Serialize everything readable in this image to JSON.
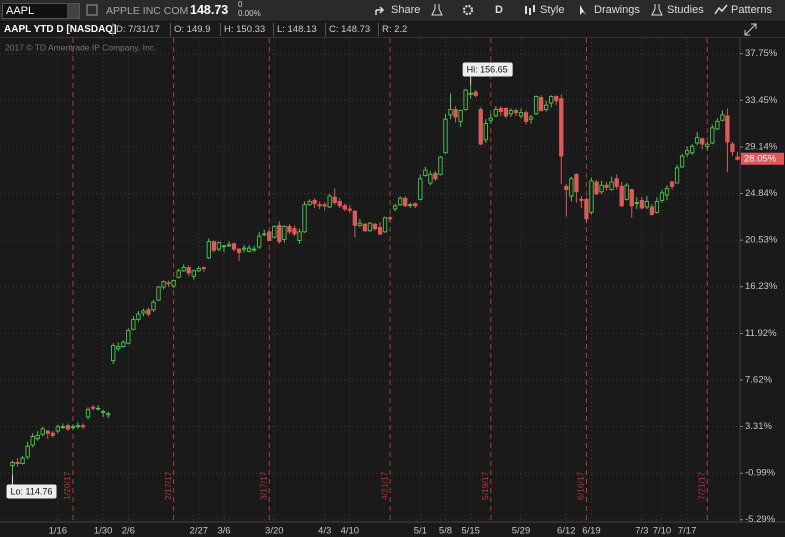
{
  "toolbar": {
    "symbol": "AAPL",
    "company": "APPLE INC COM",
    "last": "148.73",
    "change": "0",
    "change_pct": "0.00%",
    "buttons": [
      "Share",
      "D",
      "Style",
      "Drawings",
      "Studies",
      "Patterns"
    ]
  },
  "header": {
    "title": "AAPL YTD D [NASDAQ]",
    "fields": [
      "D: 7/31/17",
      "O: 149.9",
      "H: 150.33",
      "L: 148.13",
      "C: 148.73",
      "R: 2.2"
    ]
  },
  "chart_data": {
    "type": "candlestick",
    "copyright": "2017 © TD Ameritrade IP Company, Inc.",
    "open": [
      -0.3,
      0.0,
      -0.1,
      0.5,
      1.6,
      2.2,
      2.6,
      2.9,
      2.7,
      2.9,
      3.3,
      3.4,
      3.3,
      3.3,
      3.4,
      4.2,
      5.1,
      5.0,
      4.6,
      4.4,
      9.4,
      10.5,
      10.7,
      11.0,
      12.3,
      13.2,
      13.8,
      14.1,
      14.1,
      15.0,
      16.2,
      16.6,
      16.3,
      17.1,
      17.7,
      18.0,
      17.2,
      17.7,
      18.0,
      18.9,
      20.4,
      19.7,
      20.0,
      20.0,
      20.2,
      19.7,
      19.7,
      19.5,
      19.7,
      19.9,
      21.1,
      21.3,
      20.8,
      21.9,
      20.6,
      21.8,
      21.6,
      20.5,
      21.3,
      23.8,
      24.2,
      23.8,
      23.8,
      23.6,
      24.5,
      24.1,
      23.7,
      23.4,
      23.2,
      21.9,
      22.0,
      21.4,
      22.0,
      21.7,
      21.3,
      22.6,
      23.4,
      23.8,
      24.4,
      23.8,
      23.9,
      24.3,
      26.5,
      25.8,
      26.7,
      26.6,
      28.6,
      32.1,
      32.6,
      31.5,
      32.6,
      34.0,
      34.2,
      32.6,
      29.8,
      31.6,
      32.0,
      32.7,
      32.7,
      32.2,
      32.5,
      32.0,
      32.3,
      31.7,
      32.2,
      33.7,
      32.6,
      33.2,
      33.8,
      33.6,
      25.5,
      24.6,
      26.6,
      24.3,
      24.3,
      23.1,
      25.9,
      25.0,
      25.6,
      25.2,
      26.2,
      25.5,
      24.3,
      25.2,
      24.0,
      24.2,
      23.6,
      23.6,
      23.1,
      24.2,
      24.7,
      25.9,
      25.8,
      27.3,
      28.5,
      28.6,
      29.5,
      29.9,
      29.2,
      29.5,
      30.8,
      31.6,
      32.0,
      29.4,
      28.2
    ],
    "high": [
      0.2,
      0.4,
      0.6,
      1.9,
      2.7,
      2.9,
      3.3,
      3.0,
      2.9,
      3.5,
      3.6,
      3.6,
      3.5,
      3.7,
      3.6,
      5.1,
      5.3,
      5.3,
      4.9,
      4.7,
      11.0,
      11.1,
      11.3,
      12.4,
      13.5,
      14.0,
      14.2,
      14.3,
      15.0,
      16.3,
      16.8,
      16.8,
      16.9,
      17.9,
      18.3,
      18.2,
      17.8,
      18.1,
      18.1,
      20.7,
      20.5,
      20.4,
      20.1,
      20.4,
      20.3,
      19.8,
      20.1,
      20.1,
      20.0,
      21.3,
      21.5,
      21.4,
      21.9,
      22.3,
      21.9,
      22.0,
      21.9,
      21.6,
      24.1,
      24.3,
      24.4,
      24.1,
      24.0,
      24.8,
      25.3,
      24.4,
      23.9,
      23.8,
      23.3,
      22.5,
      22.1,
      22.2,
      22.1,
      22.2,
      22.7,
      22.8,
      23.9,
      24.6,
      24.6,
      24.0,
      24.0,
      26.6,
      27.3,
      26.9,
      26.9,
      28.3,
      32.2,
      34.1,
      32.9,
      32.6,
      34.5,
      34.9,
      34.4,
      32.8,
      31.7,
      32.2,
      32.9,
      32.9,
      32.8,
      32.7,
      32.7,
      32.7,
      32.5,
      32.1,
      33.9,
      33.9,
      33.4,
      33.9,
      33.9,
      34.0,
      25.7,
      26.4,
      26.7,
      24.6,
      24.5,
      26.3,
      26.1,
      26.0,
      25.9,
      26.4,
      26.6,
      25.9,
      25.8,
      25.3,
      24.5,
      24.5,
      24.6,
      23.9,
      24.5,
      25.2,
      25.6,
      26.0,
      27.5,
      28.5,
      29.2,
      29.4,
      30.5,
      30.0,
      29.6,
      31.2,
      31.8,
      32.5,
      32.7,
      29.6,
      28.7
    ],
    "low": [
      -1.2,
      -0.4,
      -0.2,
      0.3,
      1.4,
      2.0,
      2.4,
      2.2,
      2.3,
      2.7,
      3.1,
      2.9,
      3.0,
      3.1,
      3.1,
      4.0,
      4.8,
      4.8,
      4.2,
      4.1,
      9.1,
      10.3,
      10.6,
      10.9,
      12.2,
      13.0,
      13.5,
      13.5,
      13.9,
      14.9,
      16.0,
      16.2,
      16.1,
      17.0,
      17.6,
      17.2,
      16.9,
      17.6,
      17.6,
      18.8,
      19.4,
      19.5,
      19.4,
      19.9,
      19.5,
      18.6,
      19.4,
      19.4,
      19.4,
      19.7,
      20.9,
      20.4,
      20.7,
      20.2,
      20.3,
      21.1,
      20.9,
      20.2,
      21.2,
      23.7,
      23.5,
      23.4,
      23.3,
      23.5,
      23.8,
      23.5,
      23.2,
      23.0,
      20.8,
      21.7,
      21.3,
      21.3,
      21.4,
      21.0,
      21.2,
      22.2,
      23.2,
      23.7,
      23.6,
      23.5,
      23.5,
      24.2,
      26.4,
      25.6,
      26.0,
      26.5,
      28.5,
      31.7,
      31.4,
      31.0,
      32.5,
      33.6,
      33.7,
      29.3,
      29.5,
      31.3,
      31.9,
      32.0,
      31.8,
      31.9,
      32.0,
      31.8,
      31.2,
      31.3,
      32.1,
      32.4,
      32.4,
      32.8,
      33.0,
      25.7,
      22.7,
      24.1,
      24.0,
      23.5,
      22.1,
      22.9,
      24.7,
      24.8,
      25.1,
      25.1,
      25.2,
      23.6,
      24.2,
      22.6,
      23.4,
      23.4,
      23.4,
      22.8,
      23.0,
      24.0,
      24.2,
      25.2,
      25.8,
      27.2,
      28.2,
      28.4,
      29.3,
      28.9,
      28.8,
      29.4,
      30.7,
      31.5,
      26.8,
      28.3,
      27.9
    ],
    "close": [
      0.0,
      -0.1,
      0.4,
      1.5,
      2.4,
      2.5,
      3.1,
      2.7,
      2.5,
      3.3,
      3.3,
      3.1,
      3.3,
      3.4,
      3.3,
      4.9,
      5.0,
      5.0,
      4.7,
      4.5,
      10.8,
      10.7,
      11.1,
      12.2,
      13.2,
      13.7,
      14.0,
      13.7,
      14.8,
      16.2,
      16.7,
      16.5,
      16.8,
      17.7,
      18.0,
      17.5,
      17.7,
      17.9,
      17.9,
      20.4,
      19.6,
      20.3,
      20.0,
      20.1,
      19.7,
      19.4,
      19.8,
      19.8,
      19.7,
      20.9,
      21.1,
      20.5,
      21.8,
      20.4,
      21.8,
      21.3,
      21.1,
      21.3,
      23.8,
      24.1,
      23.9,
      23.7,
      23.7,
      24.6,
      24.0,
      23.7,
      23.4,
      23.3,
      21.9,
      22.1,
      21.4,
      22.1,
      21.6,
      21.1,
      22.6,
      22.5,
      23.7,
      24.4,
      23.7,
      23.8,
      23.7,
      26.2,
      27.0,
      26.6,
      26.2,
      28.2,
      31.7,
      32.6,
      31.9,
      32.5,
      34.4,
      34.1,
      33.9,
      29.4,
      31.3,
      31.8,
      32.6,
      32.4,
      32.0,
      32.5,
      32.3,
      32.3,
      31.5,
      31.9,
      33.8,
      32.5,
      33.0,
      33.8,
      33.4,
      28.3,
      25.2,
      26.2,
      25.0,
      24.2,
      22.5,
      26.0,
      24.8,
      25.6,
      25.4,
      25.9,
      25.5,
      23.7,
      25.6,
      23.7,
      24.0,
      23.5,
      24.1,
      22.9,
      24.1,
      24.9,
      25.3,
      25.5,
      27.2,
      28.3,
      28.8,
      29.2,
      30.0,
      29.4,
      29.4,
      30.9,
      31.5,
      32.1,
      29.6,
      28.7,
      28.0
    ],
    "xlim": [
      -0.5,
      144.5
    ],
    "xticks": [
      {
        "value": 9,
        "label": "1/16"
      },
      {
        "value": 18,
        "label": "1/30"
      },
      {
        "value": 23,
        "label": "2/6"
      },
      {
        "value": 37,
        "label": "2/27"
      },
      {
        "value": 42,
        "label": "3/6"
      },
      {
        "value": 52,
        "label": "3/20"
      },
      {
        "value": 62,
        "label": "4/3"
      },
      {
        "value": 67,
        "label": "4/10"
      },
      {
        "value": 81,
        "label": "5/1"
      },
      {
        "value": 86,
        "label": "5/8"
      },
      {
        "value": 91,
        "label": "5/15"
      },
      {
        "value": 101,
        "label": "5/29"
      },
      {
        "value": 110,
        "label": "6/12"
      },
      {
        "value": 115,
        "label": "6/19"
      },
      {
        "value": 125,
        "label": "7/3"
      },
      {
        "value": 129,
        "label": "7/10"
      },
      {
        "value": 134,
        "label": "7/17"
      }
    ],
    "ylim": [
      -5.5,
      39.2
    ],
    "yticks": [
      {
        "value": 37.75,
        "label": "37.75%"
      },
      {
        "value": 33.45,
        "label": "33.45%"
      },
      {
        "value": 29.14,
        "label": "29.14%"
      },
      {
        "value": 24.84,
        "label": "24.84%"
      },
      {
        "value": 20.53,
        "label": "20.53%"
      },
      {
        "value": 16.23,
        "label": "16.23%"
      },
      {
        "value": 11.92,
        "label": "11.92%"
      },
      {
        "value": 7.62,
        "label": "7.62%"
      },
      {
        "value": 3.31,
        "label": "3.31%"
      },
      {
        "value": -0.99,
        "label": "-0.99%"
      },
      {
        "value": -5.29,
        "label": "-5.29%"
      }
    ],
    "expirations": [
      {
        "value": 12,
        "label": "1/20/17"
      },
      {
        "value": 32,
        "label": "2/17/17"
      },
      {
        "value": 51,
        "label": "3/17/17"
      },
      {
        "value": 75,
        "label": "4/21/17"
      },
      {
        "value": 95,
        "label": "5/19/17"
      },
      {
        "value": 114,
        "label": "6/16/17"
      },
      {
        "value": 138,
        "label": "7/21/17"
      }
    ],
    "annotations": {
      "high": "Hi: 156.65",
      "low": "Lo: 114.76"
    },
    "last_label": {
      "value": 28.05,
      "label": "28.05%"
    },
    "colors": {
      "up": "#4cc84c",
      "down": "#e05858",
      "expiration": "#b03a3a"
    },
    "grid": true
  }
}
